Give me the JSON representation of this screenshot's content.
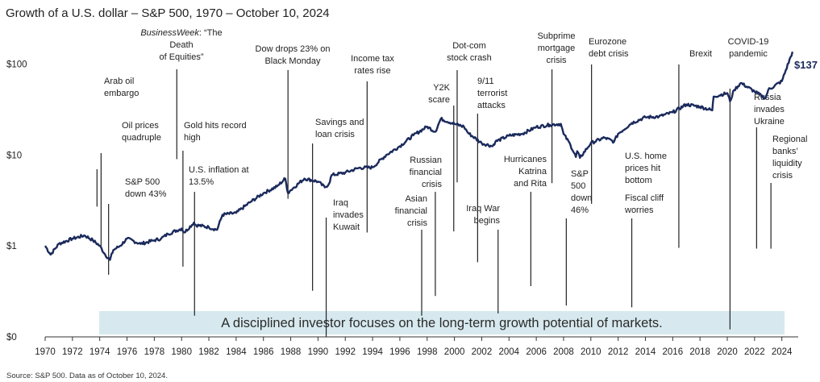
{
  "chart_data": {
    "type": "line",
    "title": "Growth of a U.S. dollar –  S&P 500, 1970 – October 10, 2024",
    "y_scale": "log",
    "xlim": [
      1970,
      2024.78
    ],
    "y_ticks": [
      {
        "label": "$0",
        "value": 0.1
      },
      {
        "label": "$1",
        "value": 1
      },
      {
        "label": "$10",
        "value": 10
      },
      {
        "label": "$100",
        "value": 100
      }
    ],
    "x_ticks": [
      "1970",
      "1972",
      "1974",
      "1976",
      "1978",
      "1980",
      "1982",
      "1984",
      "1986",
      "1988",
      "1990",
      "1992",
      "1994",
      "1996",
      "1998",
      "2000",
      "2002",
      "2004",
      "2006",
      "2008",
      "2010",
      "2012",
      "2014",
      "2016",
      "2018",
      "2020",
      "2022",
      "2024"
    ],
    "series": [
      {
        "name": "S&P 500",
        "x": [
          1970,
          1970.4,
          1971,
          1972,
          1972.9,
          1973.5,
          1974,
          1974.4,
          1974.75,
          1975,
          1975.5,
          1976,
          1977,
          1978,
          1978.5,
          1979,
          1980,
          1980.2,
          1980.9,
          1981,
          1982,
          1982.6,
          1983,
          1984,
          1985,
          1986,
          1987,
          1987.6,
          1987.8,
          1988,
          1989,
          1990,
          1990.5,
          1990.8,
          1991,
          1992,
          1993,
          1994,
          1995,
          1996,
          1997,
          1998,
          1998.6,
          1999,
          2000,
          2000.7,
          2001,
          2002,
          2002.8,
          2003,
          2004,
          2005,
          2006,
          2007,
          2007.8,
          2008,
          2008.5,
          2008.9,
          2009,
          2009.2,
          2010,
          2011,
          2011.7,
          2012,
          2013,
          2014,
          2015,
          2016,
          2017,
          2018,
          2018.9,
          2019,
          2020,
          2020.2,
          2020.5,
          2021,
          2022,
          2022.8,
          2023,
          2024,
          2024.78
        ],
        "values": [
          1,
          0.8,
          1.05,
          1.2,
          1.3,
          1.15,
          1,
          0.8,
          0.7,
          0.9,
          1.0,
          1.2,
          1.05,
          1.15,
          1.2,
          1.35,
          1.55,
          1.4,
          1.8,
          1.7,
          1.6,
          1.5,
          2.2,
          2.3,
          3.0,
          3.8,
          4.5,
          5.5,
          3.8,
          4.1,
          5.5,
          5.1,
          4.4,
          4.8,
          6.0,
          6.4,
          7.2,
          7.3,
          10,
          12.5,
          16.5,
          20.5,
          18,
          25,
          22,
          20.5,
          17.5,
          13.5,
          12.5,
          14,
          16.3,
          17.2,
          20.3,
          21.5,
          22,
          17,
          13,
          9.5,
          11,
          9.3,
          13.5,
          15.5,
          14,
          17.1,
          22.5,
          26,
          26.5,
          29.5,
          36,
          34,
          31,
          44,
          48,
          39,
          52,
          62,
          50,
          42,
          52,
          65,
          137
        ]
      }
    ],
    "end_label": "$137",
    "annotations": [
      {
        "id": "arab-oil-embargo",
        "x": 1973.8,
        "value": 2.7,
        "lines": [
          "Arab oil",
          "embargo"
        ]
      },
      {
        "id": "oil-prices-quadruple",
        "x": 1974.1,
        "value": 1.0,
        "lines": [
          "Oil prices",
          "quadruple"
        ]
      },
      {
        "id": "sp500-down-43",
        "x": 1974.65,
        "value": 0.48,
        "lines": [
          "S&P 500",
          "down 43%"
        ]
      },
      {
        "id": "death-of-equities",
        "x": 1979.65,
        "value": 9.0,
        "lines": [
          "BusinessWeek: “The",
          "Death",
          "of Equities”"
        ]
      },
      {
        "id": "gold-record-high",
        "x": 1980.1,
        "value": 0.59,
        "lines": [
          "Gold hits record",
          "high"
        ]
      },
      {
        "id": "us-inflation",
        "x": 1980.95,
        "value": 0.17,
        "lines": [
          "U.S. inflation at",
          "13.5%"
        ]
      },
      {
        "id": "black-monday",
        "x": 1987.8,
        "value": 3.3,
        "lines": [
          "Dow drops 23% on",
          "Black Monday"
        ]
      },
      {
        "id": "savings-loan",
        "x": 1989.6,
        "value": 0.32,
        "lines": [
          "Savings and",
          "loan crisis"
        ]
      },
      {
        "id": "iraq-kuwait",
        "x": 1990.6,
        "value": 0.1,
        "lines": [
          "Iraq",
          "invades",
          "Kuwait"
        ]
      },
      {
        "id": "income-tax",
        "x": 1993.6,
        "value": 1.4,
        "lines": [
          "Income tax",
          "rates rise"
        ]
      },
      {
        "id": "asian-crisis",
        "x": 1997.6,
        "value": 0.17,
        "lines": [
          "Asian",
          "financial",
          "crisis"
        ]
      },
      {
        "id": "russian-crisis",
        "x": 1998.6,
        "value": 0.28,
        "lines": [
          "Russian",
          "financial",
          "crisis"
        ]
      },
      {
        "id": "y2k-scare",
        "x": 1999.95,
        "value": 1.44,
        "lines": [
          "Y2K",
          "scare"
        ]
      },
      {
        "id": "dotcom-crash",
        "x": 2000.2,
        "value": 5.0,
        "lines": [
          "Dot-com",
          "stock crash"
        ]
      },
      {
        "id": "nine-eleven",
        "x": 2001.7,
        "value": 0.66,
        "lines": [
          "9/11",
          "terrorist",
          "attacks"
        ]
      },
      {
        "id": "iraq-war",
        "x": 2003.2,
        "value": 0.18,
        "lines": [
          "Iraq War",
          "begins"
        ]
      },
      {
        "id": "hurricanes",
        "x": 2005.6,
        "value": 0.36,
        "lines": [
          "Hurricanes",
          "Katrina",
          "and Rita"
        ]
      },
      {
        "id": "subprime",
        "x": 2007.15,
        "value": 4.9,
        "lines": [
          "Subprime",
          "mortgage",
          "crisis"
        ]
      },
      {
        "id": "sp500-down-46",
        "x": 2008.2,
        "value": 0.22,
        "lines": [
          "S&P",
          "500",
          "down",
          "46%"
        ]
      },
      {
        "id": "eurozone",
        "x": 2010.05,
        "value": 2.9,
        "lines": [
          "Eurozone",
          "debt crisis"
        ]
      },
      {
        "id": "us-home-prices",
        "x": 2013.0,
        "value": 0.21,
        "lines": [
          "U.S. home",
          "prices hit",
          "bottom"
        ]
      },
      {
        "id": "fiscal-cliff",
        "x": 2013.0,
        "value": 0.21,
        "lines": [
          "Fiscal cliff",
          "worries"
        ]
      },
      {
        "id": "brexit",
        "x": 2016.45,
        "value": 0.95,
        "lines": [
          "Brexit"
        ]
      },
      {
        "id": "covid",
        "x": 2020.2,
        "value": 0.12,
        "lines": [
          "COVID-19",
          "pandemic"
        ]
      },
      {
        "id": "russia-ukraine",
        "x": 2022.15,
        "value": 0.93,
        "lines": [
          "Russia",
          "invades",
          "Ukraine"
        ]
      },
      {
        "id": "regional-banks",
        "x": 2023.2,
        "value": 0.93,
        "lines": [
          "Regional",
          "banks’",
          "liquidity",
          "crisis"
        ]
      }
    ],
    "banner": "A disciplined investor focuses on the long-term growth potential of markets.",
    "source": "Source: S&P 500. Data as of October 10, 2024."
  }
}
